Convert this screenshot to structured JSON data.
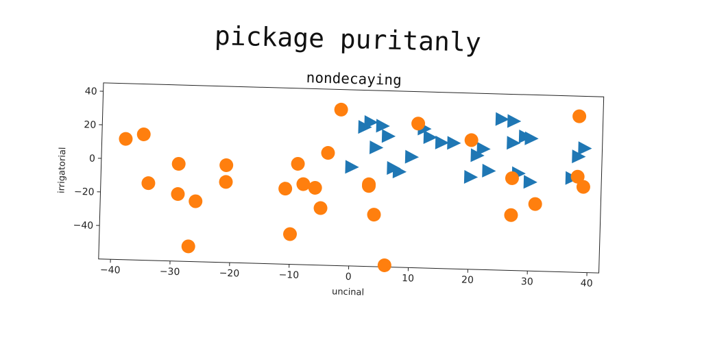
{
  "suptitle": "pickage puritanly",
  "chart_data": {
    "type": "scatter",
    "title": "nondecaying",
    "xlabel": "uncinal",
    "ylabel": "irrigatorial",
    "xlim": [
      -42,
      42
    ],
    "ylim": [
      -60,
      45
    ],
    "xticks": [
      -40,
      -30,
      -20,
      -10,
      0,
      10,
      20,
      30,
      40
    ],
    "yticks": [
      -40,
      -20,
      0,
      20,
      40
    ],
    "grid": false,
    "series": [
      {
        "marker": "triangle-right",
        "color": "#1f77b4",
        "points": [
          [
            0,
            -1
          ],
          [
            2,
            23
          ],
          [
            3,
            26
          ],
          [
            4,
            11
          ],
          [
            5,
            24
          ],
          [
            6,
            18
          ],
          [
            7,
            -1
          ],
          [
            8,
            -3
          ],
          [
            10,
            6
          ],
          [
            12,
            23
          ],
          [
            13,
            18
          ],
          [
            15,
            15
          ],
          [
            17,
            15
          ],
          [
            20,
            -5
          ],
          [
            21,
            8
          ],
          [
            22,
            12
          ],
          [
            23,
            -1
          ],
          [
            25,
            30
          ],
          [
            27,
            29
          ],
          [
            27,
            16
          ],
          [
            28,
            -2
          ],
          [
            29,
            20
          ],
          [
            30,
            19
          ],
          [
            30,
            -7
          ],
          [
            37,
            -4
          ],
          [
            38,
            9
          ],
          [
            39,
            14
          ]
        ]
      },
      {
        "marker": "circle",
        "color": "#ff7f0e",
        "points": [
          [
            -38,
            12
          ],
          [
            -35,
            15
          ],
          [
            -34,
            -14
          ],
          [
            -29,
            -2
          ],
          [
            -29,
            -20
          ],
          [
            -27,
            -51
          ],
          [
            -26,
            -24
          ],
          [
            -21,
            -2
          ],
          [
            -21,
            -12
          ],
          [
            -11,
            -15
          ],
          [
            -9,
            0
          ],
          [
            -10,
            -42
          ],
          [
            -8,
            -12
          ],
          [
            -6,
            -14
          ],
          [
            -5,
            -26
          ],
          [
            -4,
            7
          ],
          [
            -2,
            33
          ],
          [
            3,
            -11
          ],
          [
            3,
            -12
          ],
          [
            4,
            -29
          ],
          [
            6,
            -59
          ],
          [
            11,
            26
          ],
          [
            20,
            17
          ],
          [
            27,
            -5
          ],
          [
            27,
            -27
          ],
          [
            31,
            -20
          ],
          [
            38,
            33
          ],
          [
            38,
            -3
          ],
          [
            39,
            -9
          ]
        ]
      }
    ]
  }
}
